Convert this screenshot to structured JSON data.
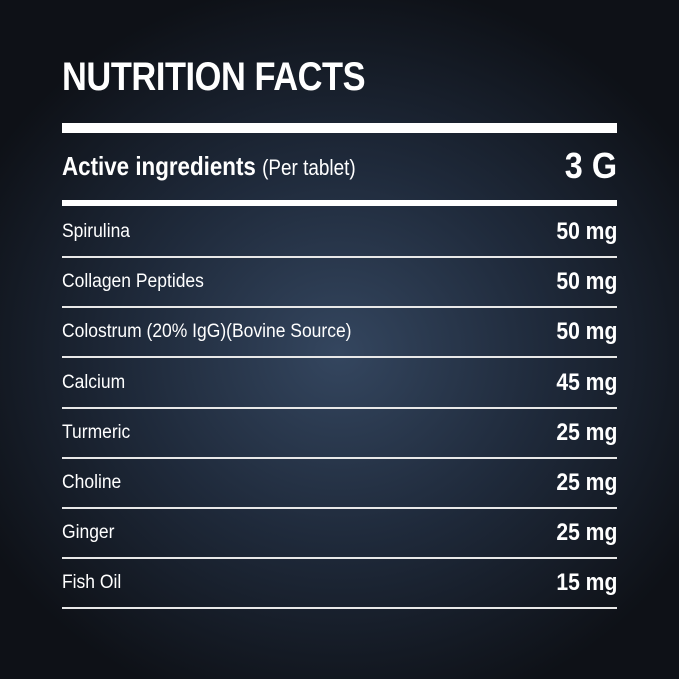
{
  "title": "NUTRITION FACTS",
  "header": {
    "label": "Active ingredients",
    "qualifier": "(Per tablet)",
    "amount": "3 G"
  },
  "ingredients": [
    {
      "name": "Spirulina",
      "amount": "50 mg"
    },
    {
      "name": "Collagen Peptides",
      "amount": "50 mg"
    },
    {
      "name": "Colostrum (20% IgG)(Bovine Source)",
      "amount": "50 mg"
    },
    {
      "name": "Calcium",
      "amount": "45 mg"
    },
    {
      "name": "Turmeric",
      "amount": "25 mg"
    },
    {
      "name": "Choline",
      "amount": "25 mg"
    },
    {
      "name": "Ginger",
      "amount": "25 mg"
    },
    {
      "name": "Fish Oil",
      "amount": "15 mg"
    }
  ]
}
